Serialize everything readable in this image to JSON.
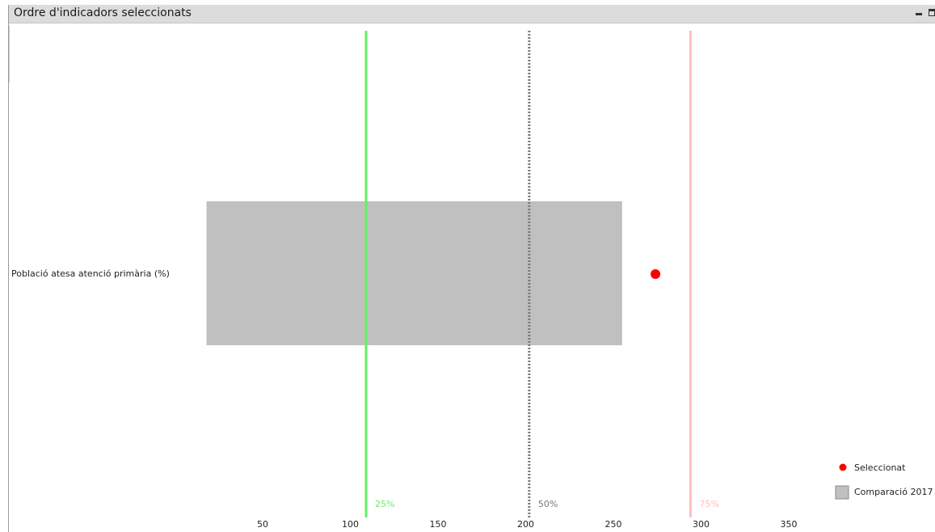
{
  "window": {
    "title": "Ordre d'indicadors seleccionats"
  },
  "chart_data": {
    "type": "bar",
    "categories": [
      "Població atesa atenció primària (%)"
    ],
    "series": [
      {
        "name": "Comparació 2017",
        "kind": "range-bar",
        "color": "#c0c0c0",
        "values": [
          [
            18,
            255
          ]
        ]
      },
      {
        "name": "Seleccionat",
        "kind": "point",
        "color": "#ff0000",
        "values": [
          274
        ]
      }
    ],
    "reference_lines": [
      {
        "label": "25%",
        "value": 109,
        "color": "#66ee66",
        "style": "solid"
      },
      {
        "label": "50%",
        "value": 202,
        "color": "#777777",
        "style": "dotted"
      },
      {
        "label": "75%",
        "value": 294,
        "color": "#ffc0c0",
        "style": "solid"
      }
    ],
    "x_ticks": [
      50,
      100,
      150,
      200,
      250,
      300,
      350
    ],
    "xlim": [
      -25,
      400
    ],
    "xlabel": "",
    "ylabel": "",
    "grid": false,
    "legend_position": "bottom-right"
  }
}
